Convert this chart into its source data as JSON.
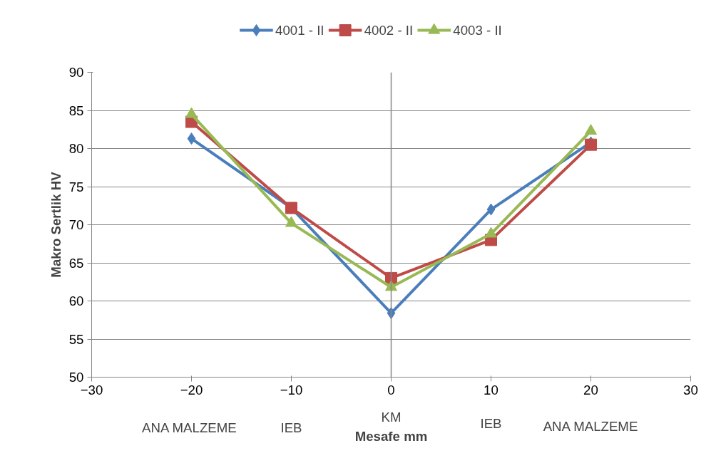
{
  "chart_data": {
    "type": "line",
    "xlabel": "Mesafe mm",
    "ylabel": "Makro Sertlik HV",
    "x": [
      -20,
      -10,
      0,
      10,
      20
    ],
    "series": [
      {
        "name": "4001 - II",
        "color": "#4a7ebb",
        "marker": "diamond",
        "values": [
          81.3,
          72.2,
          58.4,
          72,
          80.8
        ]
      },
      {
        "name": "4002 - II",
        "color": "#be4b48",
        "marker": "square",
        "values": [
          83.5,
          72.2,
          63,
          68,
          80.5
        ]
      },
      {
        "name": "4003 - II",
        "color": "#98b954",
        "marker": "triangle",
        "values": [
          84.5,
          70.2,
          61.8,
          68.8,
          82.3
        ]
      }
    ],
    "xlim": [
      -30,
      30
    ],
    "xticks": [
      -30,
      -20,
      -10,
      0,
      10,
      20,
      30
    ],
    "ylim": [
      50,
      90
    ],
    "yticks": [
      50,
      55,
      60,
      65,
      70,
      75,
      80,
      85,
      90
    ],
    "grid": "y",
    "legend": "top",
    "ref_lines": [
      {
        "axis": "x",
        "value": 0,
        "color": "#868686"
      }
    ],
    "annotations": [
      "ANA  MALZEME",
      "IEB",
      "KM",
      "IEB",
      "ANA MALZEME"
    ]
  }
}
